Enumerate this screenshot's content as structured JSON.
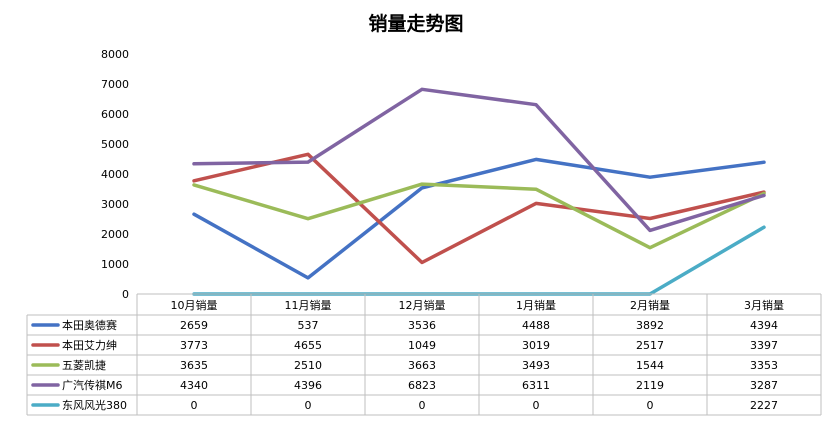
{
  "chart_data": {
    "type": "line",
    "title": "销量走势图",
    "categories": [
      "10月销量",
      "11月销量",
      "12月销量",
      "1月销量",
      "2月销量",
      "3月销量"
    ],
    "ylim": [
      0,
      8000
    ],
    "yticks": [
      "0",
      "1000",
      "2000",
      "3000",
      "4000",
      "5000",
      "6000",
      "7000",
      "8000"
    ],
    "grid": false,
    "legend": "data-table-left",
    "series": [
      {
        "name": "本田奥德赛",
        "color": "#4472C4",
        "values": [
          2659,
          537,
          3536,
          4488,
          3892,
          4394
        ]
      },
      {
        "name": "本田艾力绅",
        "color": "#C0504D",
        "values": [
          3773,
          4655,
          1049,
          3019,
          2517,
          3397
        ]
      },
      {
        "name": "五菱凯捷",
        "color": "#9BBB59",
        "values": [
          3635,
          2510,
          3663,
          3493,
          1544,
          3353
        ]
      },
      {
        "name": "广汽传祺M6",
        "color": "#8064A2",
        "values": [
          4340,
          4396,
          6823,
          6311,
          2119,
          3287
        ]
      },
      {
        "name": "东风风光380",
        "color": "#4BACC6",
        "values": [
          0,
          0,
          0,
          0,
          0,
          2227
        ]
      }
    ]
  }
}
